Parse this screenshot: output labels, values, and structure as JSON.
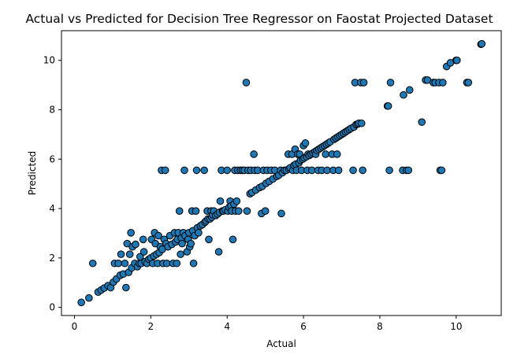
{
  "chart_data": {
    "type": "scatter",
    "title": "Actual vs Predicted for Decision Tree Regressor on Faostat Projected Dataset",
    "xlabel": "Actual",
    "ylabel": "Predicted",
    "xlim": [
      -0.34,
      11.18
    ],
    "ylim": [
      -0.33,
      11.2
    ],
    "xticks": [
      0,
      2,
      4,
      6,
      8,
      10
    ],
    "yticks": [
      0,
      2,
      4,
      6,
      8,
      10
    ],
    "grid": false,
    "marker_color": "#1f77b4",
    "marker_edge_color": "#000000",
    "points": [
      [
        0.18,
        0.2
      ],
      [
        0.38,
        0.38
      ],
      [
        0.48,
        1.78
      ],
      [
        0.62,
        0.62
      ],
      [
        0.7,
        0.7
      ],
      [
        0.78,
        0.78
      ],
      [
        0.88,
        0.88
      ],
      [
        0.95,
        0.8
      ],
      [
        1.02,
        1.02
      ],
      [
        1.05,
        1.78
      ],
      [
        1.1,
        1.15
      ],
      [
        1.15,
        1.78
      ],
      [
        1.2,
        1.3
      ],
      [
        1.22,
        2.15
      ],
      [
        1.28,
        1.35
      ],
      [
        1.32,
        1.78
      ],
      [
        1.35,
        0.8
      ],
      [
        1.38,
        2.58
      ],
      [
        1.42,
        1.42
      ],
      [
        1.45,
        2.15
      ],
      [
        1.48,
        3.02
      ],
      [
        1.5,
        1.6
      ],
      [
        1.52,
        2.45
      ],
      [
        1.58,
        1.78
      ],
      [
        1.6,
        2.55
      ],
      [
        1.65,
        1.65
      ],
      [
        1.7,
        1.78
      ],
      [
        1.72,
        2.05
      ],
      [
        1.75,
        1.78
      ],
      [
        1.8,
        2.75
      ],
      [
        1.82,
        2.25
      ],
      [
        1.85,
        1.85
      ],
      [
        1.9,
        1.78
      ],
      [
        1.95,
        1.95
      ],
      [
        2.0,
        2.0
      ],
      [
        2.02,
        2.75
      ],
      [
        2.05,
        1.78
      ],
      [
        2.08,
        2.08
      ],
      [
        2.1,
        3.02
      ],
      [
        2.12,
        2.58
      ],
      [
        2.15,
        2.15
      ],
      [
        2.18,
        1.78
      ],
      [
        2.2,
        2.9
      ],
      [
        2.22,
        2.22
      ],
      [
        2.25,
        2.45
      ],
      [
        2.28,
        5.55
      ],
      [
        2.3,
        2.35
      ],
      [
        2.32,
        1.78
      ],
      [
        2.35,
        2.75
      ],
      [
        2.38,
        5.55
      ],
      [
        2.4,
        2.58
      ],
      [
        2.42,
        1.78
      ],
      [
        2.45,
        2.45
      ],
      [
        2.5,
        2.9
      ],
      [
        2.55,
        2.55
      ],
      [
        2.58,
        1.78
      ],
      [
        2.62,
        3.02
      ],
      [
        2.65,
        2.65
      ],
      [
        2.68,
        1.78
      ],
      [
        2.7,
        2.75
      ],
      [
        2.72,
        3.02
      ],
      [
        2.75,
        3.9
      ],
      [
        2.78,
        2.15
      ],
      [
        2.8,
        2.8
      ],
      [
        2.82,
        2.58
      ],
      [
        2.85,
        3.02
      ],
      [
        2.88,
        5.55
      ],
      [
        2.9,
        2.9
      ],
      [
        2.95,
        2.25
      ],
      [
        2.98,
        2.75
      ],
      [
        3.0,
        3.02
      ],
      [
        3.02,
        2.45
      ],
      [
        3.05,
        2.58
      ],
      [
        3.08,
        3.9
      ],
      [
        3.1,
        3.1
      ],
      [
        3.12,
        1.78
      ],
      [
        3.15,
        2.9
      ],
      [
        3.18,
        3.9
      ],
      [
        3.2,
        5.55
      ],
      [
        3.22,
        3.22
      ],
      [
        3.25,
        3.02
      ],
      [
        3.3,
        3.3
      ],
      [
        3.35,
        3.35
      ],
      [
        3.4,
        5.55
      ],
      [
        3.42,
        3.45
      ],
      [
        3.45,
        3.5
      ],
      [
        3.48,
        3.9
      ],
      [
        3.5,
        3.58
      ],
      [
        3.52,
        2.75
      ],
      [
        3.55,
        3.58
      ],
      [
        3.58,
        3.9
      ],
      [
        3.6,
        3.65
      ],
      [
        3.62,
        3.75
      ],
      [
        3.65,
        3.9
      ],
      [
        3.7,
        3.72
      ],
      [
        3.75,
        3.78
      ],
      [
        3.78,
        2.25
      ],
      [
        3.8,
        3.85
      ],
      [
        3.82,
        4.3
      ],
      [
        3.85,
        5.55
      ],
      [
        3.88,
        3.9
      ],
      [
        3.9,
        3.9
      ],
      [
        3.95,
        3.95
      ],
      [
        4.0,
        5.55
      ],
      [
        4.02,
        3.9
      ],
      [
        4.05,
        4.05
      ],
      [
        4.08,
        4.3
      ],
      [
        4.1,
        4.1
      ],
      [
        4.12,
        3.9
      ],
      [
        4.15,
        2.75
      ],
      [
        4.18,
        4.18
      ],
      [
        4.2,
        5.55
      ],
      [
        4.22,
        3.9
      ],
      [
        4.25,
        4.3
      ],
      [
        4.28,
        5.55
      ],
      [
        4.3,
        3.9
      ],
      [
        4.35,
        5.55
      ],
      [
        4.4,
        5.55
      ],
      [
        4.45,
        5.55
      ],
      [
        4.5,
        9.1
      ],
      [
        4.52,
        3.9
      ],
      [
        4.55,
        5.55
      ],
      [
        4.6,
        4.6
      ],
      [
        4.62,
        5.55
      ],
      [
        4.65,
        4.65
      ],
      [
        4.7,
        6.2
      ],
      [
        4.72,
        5.55
      ],
      [
        4.75,
        4.75
      ],
      [
        4.8,
        5.55
      ],
      [
        4.85,
        4.85
      ],
      [
        4.9,
        3.8
      ],
      [
        4.92,
        4.9
      ],
      [
        4.95,
        5.55
      ],
      [
        5.0,
        3.9
      ],
      [
        5.02,
        5.02
      ],
      [
        5.05,
        5.55
      ],
      [
        5.1,
        5.1
      ],
      [
        5.15,
        5.55
      ],
      [
        5.2,
        5.2
      ],
      [
        5.25,
        5.55
      ],
      [
        5.3,
        5.3
      ],
      [
        5.35,
        5.35
      ],
      [
        5.4,
        5.55
      ],
      [
        5.42,
        3.8
      ],
      [
        5.45,
        5.45
      ],
      [
        5.5,
        5.55
      ],
      [
        5.55,
        5.55
      ],
      [
        5.6,
        6.2
      ],
      [
        5.62,
        5.6
      ],
      [
        5.65,
        5.65
      ],
      [
        5.7,
        6.2
      ],
      [
        5.72,
        5.55
      ],
      [
        5.75,
        5.75
      ],
      [
        5.78,
        6.4
      ],
      [
        5.8,
        5.8
      ],
      [
        5.82,
        5.55
      ],
      [
        5.85,
        6.2
      ],
      [
        5.88,
        5.85
      ],
      [
        5.9,
        6.2
      ],
      [
        5.92,
        5.95
      ],
      [
        5.95,
        5.55
      ],
      [
        5.98,
        6.0
      ],
      [
        6.0,
        6.55
      ],
      [
        6.02,
        6.05
      ],
      [
        6.05,
        6.65
      ],
      [
        6.08,
        6.1
      ],
      [
        6.1,
        5.55
      ],
      [
        6.12,
        6.2
      ],
      [
        6.15,
        6.15
      ],
      [
        6.2,
        6.2
      ],
      [
        6.22,
        5.55
      ],
      [
        6.25,
        6.25
      ],
      [
        6.3,
        6.3
      ],
      [
        6.32,
        6.2
      ],
      [
        6.35,
        6.35
      ],
      [
        6.38,
        5.55
      ],
      [
        6.4,
        6.4
      ],
      [
        6.45,
        6.45
      ],
      [
        6.48,
        5.55
      ],
      [
        6.5,
        6.5
      ],
      [
        6.55,
        6.55
      ],
      [
        6.58,
        6.2
      ],
      [
        6.6,
        6.6
      ],
      [
        6.62,
        5.55
      ],
      [
        6.65,
        6.65
      ],
      [
        6.7,
        6.7
      ],
      [
        6.75,
        6.2
      ],
      [
        6.78,
        5.55
      ],
      [
        6.8,
        6.8
      ],
      [
        6.85,
        6.85
      ],
      [
        6.88,
        6.2
      ],
      [
        6.9,
        6.9
      ],
      [
        6.92,
        5.55
      ],
      [
        6.95,
        6.95
      ],
      [
        7.0,
        7.0
      ],
      [
        7.05,
        7.05
      ],
      [
        7.1,
        7.1
      ],
      [
        7.15,
        7.15
      ],
      [
        7.2,
        7.2
      ],
      [
        7.25,
        7.25
      ],
      [
        7.3,
        5.55
      ],
      [
        7.32,
        7.3
      ],
      [
        7.35,
        9.1
      ],
      [
        7.38,
        7.4
      ],
      [
        7.42,
        7.42
      ],
      [
        7.45,
        7.45
      ],
      [
        7.5,
        9.1
      ],
      [
        7.52,
        7.45
      ],
      [
        7.55,
        5.55
      ],
      [
        7.58,
        9.1
      ],
      [
        8.2,
        8.15
      ],
      [
        8.22,
        8.15
      ],
      [
        8.25,
        5.55
      ],
      [
        8.28,
        9.1
      ],
      [
        8.6,
        5.55
      ],
      [
        8.62,
        8.6
      ],
      [
        8.7,
        5.55
      ],
      [
        8.75,
        5.55
      ],
      [
        8.78,
        8.8
      ],
      [
        9.1,
        7.5
      ],
      [
        9.2,
        9.2
      ],
      [
        9.25,
        9.2
      ],
      [
        9.4,
        9.1
      ],
      [
        9.45,
        9.1
      ],
      [
        9.55,
        9.1
      ],
      [
        9.58,
        5.55
      ],
      [
        9.62,
        5.55
      ],
      [
        9.65,
        9.1
      ],
      [
        9.75,
        9.75
      ],
      [
        9.85,
        9.9
      ],
      [
        10.0,
        10.0
      ],
      [
        10.02,
        10.0
      ],
      [
        10.28,
        9.1
      ],
      [
        10.32,
        9.1
      ],
      [
        10.65,
        10.65
      ],
      [
        10.67,
        10.67
      ]
    ]
  }
}
